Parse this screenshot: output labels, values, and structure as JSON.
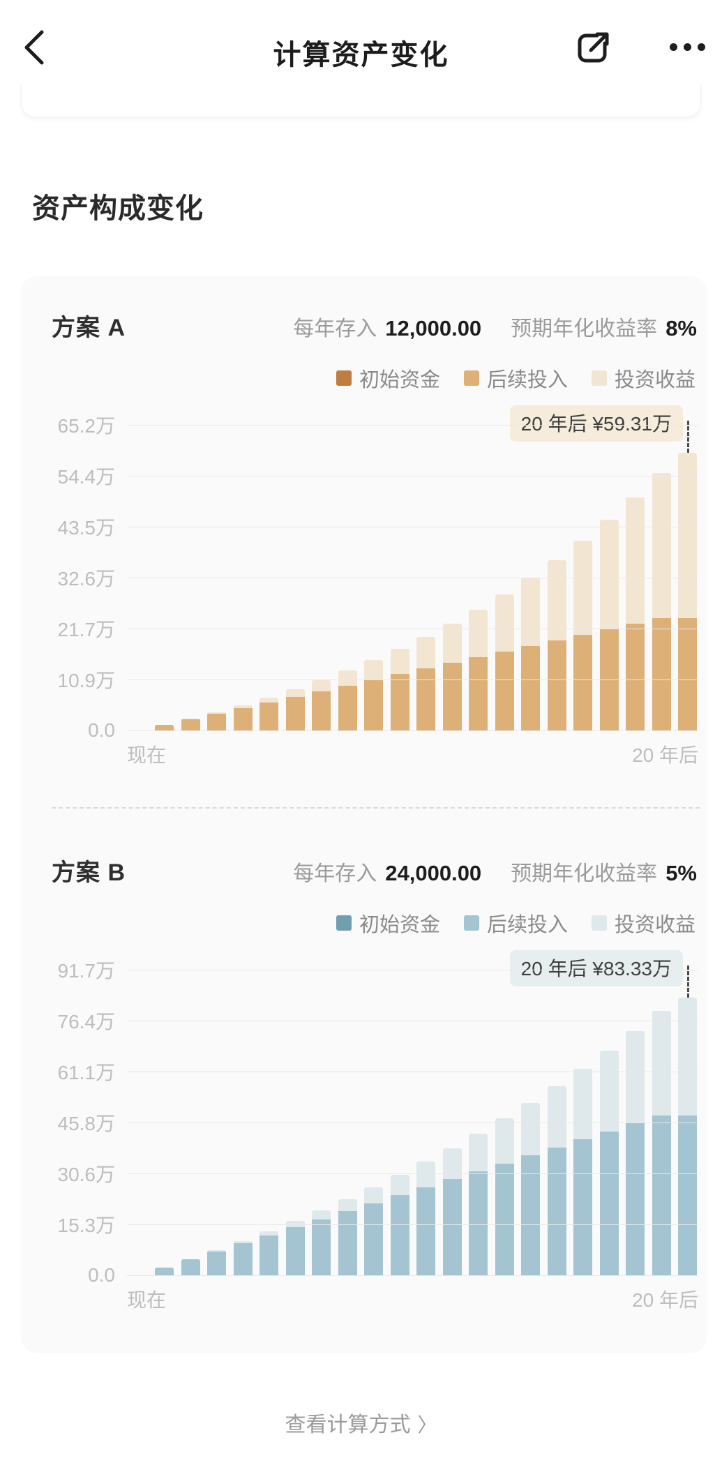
{
  "header": {
    "title": "计算资产变化"
  },
  "icons": {
    "back": "chevron-left",
    "share": "share-box-arrow",
    "more": "ellipsis-horizontal",
    "footer_chevron": "〉"
  },
  "section_title": "资产构成变化",
  "plans": [
    {
      "name": "方案 A",
      "deposit_label": "每年存入",
      "deposit_value": "12,000.00",
      "rate_label": "预期年化收益率",
      "rate_value": "8%"
    },
    {
      "name": "方案 B",
      "deposit_label": "每年存入",
      "deposit_value": "24,000.00",
      "rate_label": "预期年化收益率",
      "rate_value": "5%"
    }
  ],
  "footer": {
    "link_label": "查看计算方式",
    "chevron": "〉"
  },
  "chart_data": [
    {
      "type": "bar",
      "stacked": true,
      "title": "方案 A 资产构成变化",
      "unit": "万",
      "grid": true,
      "legend_position": "top-right",
      "categories": [
        0,
        1,
        2,
        3,
        4,
        5,
        6,
        7,
        8,
        9,
        10,
        11,
        12,
        13,
        14,
        15,
        16,
        17,
        18,
        19,
        20
      ],
      "x_axis_labels": [
        "现在",
        "20 年后"
      ],
      "y_ticks": [
        0,
        10.9,
        21.7,
        32.6,
        43.5,
        54.4,
        65.2
      ],
      "y_tick_labels": [
        "0.0",
        "10.9万",
        "21.7万",
        "32.6万",
        "43.5万",
        "54.4万",
        "65.2万"
      ],
      "y_max": 65.2,
      "series": [
        {
          "name": "初始资金",
          "color": "#bf7e40",
          "values": [
            0,
            0,
            0,
            0,
            0,
            0,
            0,
            0,
            0,
            0,
            0,
            0,
            0,
            0,
            0,
            0,
            0,
            0,
            0,
            0,
            0
          ]
        },
        {
          "name": "后续投入",
          "color": "#ddb078",
          "values": [
            1.2,
            2.4,
            3.6,
            4.8,
            6,
            7.2,
            8.4,
            9.6,
            10.8,
            12,
            13.2,
            14.4,
            15.6,
            16.8,
            18,
            19.2,
            20.4,
            21.6,
            22.8,
            24,
            24
          ]
        },
        {
          "name": "投资收益",
          "color": "#f2e6d2",
          "values": [
            0,
            0.1,
            0.3,
            0.61,
            1.04,
            1.6,
            2.31,
            3.16,
            4.19,
            5.38,
            6.77,
            8.37,
            10.19,
            12.26,
            14.58,
            17.19,
            20.1,
            23.34,
            26.94,
            30.91,
            35.31
          ]
        }
      ],
      "annotation": {
        "text": "20 年后 ¥59.31万",
        "x_index": 20,
        "value": 59.31,
        "bg": "#f5ecdb"
      }
    },
    {
      "type": "bar",
      "stacked": true,
      "title": "方案 B 资产构成变化",
      "unit": "万",
      "grid": true,
      "legend_position": "top-right",
      "categories": [
        0,
        1,
        2,
        3,
        4,
        5,
        6,
        7,
        8,
        9,
        10,
        11,
        12,
        13,
        14,
        15,
        16,
        17,
        18,
        19,
        20
      ],
      "x_axis_labels": [
        "现在",
        "20 年后"
      ],
      "y_ticks": [
        0,
        15.3,
        30.6,
        45.8,
        61.1,
        76.4,
        91.7
      ],
      "y_tick_labels": [
        "0.0",
        "15.3万",
        "30.6万",
        "45.8万",
        "61.1万",
        "76.4万",
        "91.7万"
      ],
      "y_max": 91.7,
      "series": [
        {
          "name": "初始资金",
          "color": "#6f9fb0",
          "values": [
            0,
            0,
            0,
            0,
            0,
            0,
            0,
            0,
            0,
            0,
            0,
            0,
            0,
            0,
            0,
            0,
            0,
            0,
            0,
            0,
            0
          ]
        },
        {
          "name": "后续投入",
          "color": "#a3c4d0",
          "values": [
            2.4,
            4.8,
            7.2,
            9.6,
            12,
            14.4,
            16.8,
            19.2,
            21.6,
            24,
            26.4,
            28.8,
            31.2,
            33.6,
            36,
            38.4,
            40.8,
            43.2,
            45.6,
            48,
            48
          ]
        },
        {
          "name": "投资收益",
          "color": "#dfe8ea",
          "values": [
            0,
            0.12,
            0.37,
            0.74,
            1.26,
            1.92,
            2.74,
            3.72,
            4.86,
            6.19,
            7.7,
            9.4,
            11.31,
            13.44,
            15.79,
            18.38,
            21.22,
            24.32,
            27.69,
            31.36,
            35.33
          ]
        }
      ],
      "annotation": {
        "text": "20 年后 ¥83.33万",
        "x_index": 20,
        "value": 83.33,
        "bg": "#e7eeef"
      }
    }
  ]
}
